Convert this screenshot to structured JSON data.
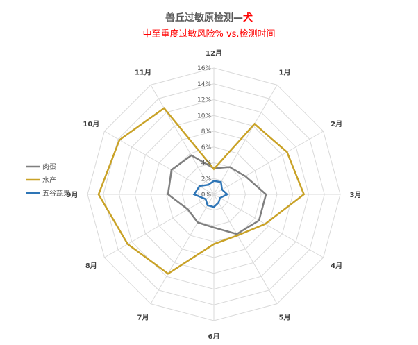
{
  "chart_data": {
    "type": "radar",
    "title_main": "兽丘过敏原检测—",
    "title_accent": "犬",
    "subtitle": "中至重度过敏风险% vs.检测时间",
    "categories": [
      "12月",
      "1月",
      "2月",
      "3月",
      "4月",
      "5月",
      "6月",
      "7月",
      "8月",
      "9月",
      "10月",
      "11月"
    ],
    "r_ticks": [
      "0%",
      "2%",
      "4%",
      "6%",
      "8%",
      "10%",
      "12%",
      "14%",
      "16%"
    ],
    "rmax": 16,
    "series": [
      {
        "name": "肉蛋",
        "color": "#7f7f7f",
        "values": [
          3.3,
          4.0,
          4.6,
          6.6,
          6.6,
          5.8,
          4.2,
          4.1,
          3.8,
          5.8,
          6.2,
          5.7
        ]
      },
      {
        "name": "水产",
        "color": "#c9a227",
        "values": [
          3.2,
          10.3,
          10.7,
          11.4,
          7.5,
          6.0,
          6.3,
          11.6,
          12.6,
          14.6,
          13.8,
          12.6
        ]
      },
      {
        "name": "五谷蔬果",
        "color": "#2e75b6",
        "values": [
          1.7,
          1.8,
          1.2,
          1.7,
          0.9,
          1.2,
          1.6,
          1.6,
          1.2,
          2.5,
          2.1,
          1.4
        ]
      }
    ],
    "grid": true,
    "legend": "left",
    "colors": {
      "title": "#595959",
      "accent": "#ff0000",
      "subtitle": "#ff0000",
      "grid": "#d9d9d9"
    }
  }
}
